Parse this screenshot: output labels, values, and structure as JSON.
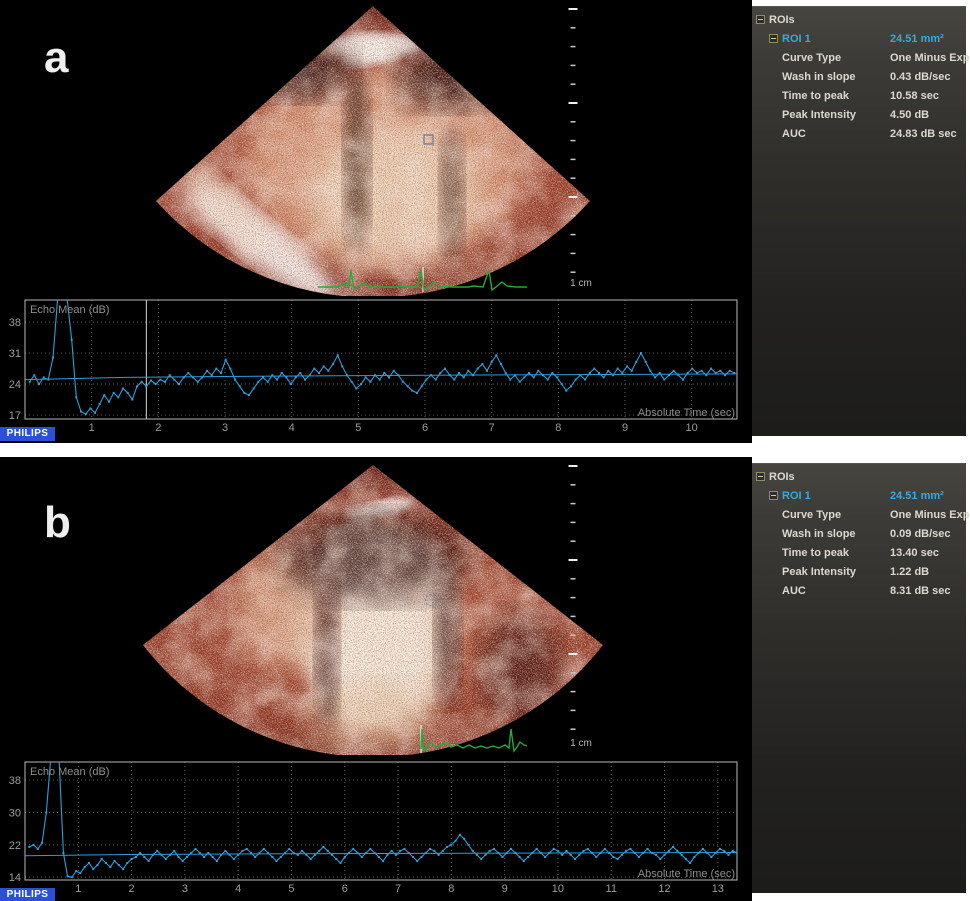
{
  "app": {
    "brand": "PHILIPS"
  },
  "panels": [
    {
      "label": "a",
      "scale_label": "1 cm",
      "roi_panel": {
        "root_label": "ROIs",
        "roi_name": "ROI 1",
        "roi_area": "24.51 mm²",
        "rows": [
          {
            "label": "Curve Type",
            "value": "One Minus Exp"
          },
          {
            "label": "Wash in slope",
            "value": "0.43 dB/sec"
          },
          {
            "label": "Time to peak",
            "value": "10.58 sec"
          },
          {
            "label": "Peak Intensity",
            "value": "4.50 dB"
          },
          {
            "label": "AUC",
            "value": "24.83 dB sec"
          }
        ]
      }
    },
    {
      "label": "b",
      "scale_label": "1 cm",
      "roi_panel": {
        "root_label": "ROIs",
        "roi_name": "ROI 1",
        "roi_area": "24.51 mm²",
        "rows": [
          {
            "label": "Curve Type",
            "value": "One Minus Exp"
          },
          {
            "label": "Wash in slope",
            "value": "0.09 dB/sec"
          },
          {
            "label": "Time to peak",
            "value": "13.40 sec"
          },
          {
            "label": "Peak Intensity",
            "value": "1.22 dB"
          },
          {
            "label": "AUC",
            "value": "8.31 dB sec"
          }
        ]
      }
    }
  ],
  "colors": {
    "accent_cyan": "#35aadf",
    "plot_blue": "#2aa0dc",
    "ecg_green": "#27a93c",
    "philips_blue": "#2b50d6",
    "sidebar_top": "#46453f",
    "sidebar_bottom": "#1c1c1a"
  },
  "chart_data": [
    {
      "type": "line",
      "title": "Echo Mean (dB)",
      "ylabel": "Echo Mean (dB)",
      "xlabel": "Absolute Time (sec)",
      "xlim": [
        0,
        10.68
      ],
      "ylim": [
        16.1,
        43.0
      ],
      "xticks": [
        1,
        2,
        3,
        4,
        5,
        6,
        7,
        8,
        9,
        10
      ],
      "yticks": [
        38,
        31,
        24,
        17
      ],
      "grid": "dotted",
      "legend": "none",
      "frame_marker_time": 1.82,
      "fit_series": {
        "name": "One Minus Exp fit",
        "points": [
          [
            0,
            25.0
          ],
          [
            1.5,
            25.5
          ],
          [
            3,
            25.7
          ],
          [
            6,
            26.0
          ],
          [
            10.68,
            26.3
          ]
        ]
      },
      "series": [
        {
          "name": "Echo Mean",
          "t0": 0.07,
          "dt": 0.07,
          "values": [
            24.5,
            26.0,
            24.0,
            25.5,
            25.0,
            30.0,
            43.5,
            43.5,
            43.5,
            34.0,
            21.0,
            17.8,
            17.2,
            18.5,
            17.5,
            19.5,
            21.5,
            20.0,
            22.0,
            21.0,
            23.0,
            22.0,
            20.5,
            23.5,
            24.5,
            23.5,
            24.8,
            24.0,
            25.0,
            24.5,
            26.0,
            25.0,
            24.0,
            25.5,
            26.5,
            25.5,
            24.5,
            25.5,
            27.0,
            26.0,
            27.5,
            26.5,
            29.5,
            27.5,
            25.0,
            23.5,
            22.0,
            21.5,
            23.0,
            24.5,
            25.5,
            24.5,
            26.0,
            25.0,
            26.5,
            25.5,
            24.0,
            25.5,
            26.5,
            25.0,
            26.0,
            27.5,
            26.5,
            28.0,
            27.0,
            28.5,
            30.5,
            28.0,
            26.0,
            24.5,
            23.0,
            24.0,
            25.5,
            24.5,
            26.0,
            25.0,
            26.5,
            25.5,
            27.0,
            26.0,
            24.5,
            23.5,
            22.5,
            22.0,
            23.5,
            25.0,
            26.0,
            25.0,
            26.5,
            27.5,
            26.0,
            25.0,
            26.5,
            25.5,
            27.0,
            26.0,
            27.5,
            28.5,
            27.0,
            29.0,
            30.5,
            28.5,
            26.5,
            25.0,
            26.0,
            24.5,
            25.5,
            26.5,
            25.5,
            27.0,
            26.0,
            25.0,
            26.5,
            25.5,
            24.0,
            22.5,
            23.5,
            25.0,
            26.0,
            25.0,
            26.5,
            27.5,
            26.5,
            25.5,
            27.0,
            26.0,
            27.5,
            26.5,
            28.0,
            27.0,
            29.0,
            31.0,
            29.0,
            27.0,
            25.5,
            26.5,
            25.0,
            26.0,
            27.0,
            26.0,
            25.0,
            26.5,
            27.5,
            26.5,
            27.0,
            26.0,
            27.5,
            26.5,
            27.0,
            26.0,
            27.0,
            26.5
          ]
        }
      ]
    },
    {
      "type": "line",
      "title": "Echo Mean (dB)",
      "ylabel": "Echo Mean (dB)",
      "xlabel": "Absolute Time (sec)",
      "xlim": [
        0,
        13.36
      ],
      "ylim": [
        13.3,
        42.5
      ],
      "xticks": [
        1,
        2,
        3,
        4,
        5,
        6,
        7,
        8,
        9,
        10,
        11,
        12,
        13
      ],
      "yticks": [
        38,
        30,
        22,
        14
      ],
      "grid": "dotted",
      "legend": "none",
      "frame_marker_time": null,
      "fit_series": {
        "name": "One Minus Exp fit",
        "points": [
          [
            0,
            19.3
          ],
          [
            2,
            19.6
          ],
          [
            5,
            19.8
          ],
          [
            13.36,
            20.1
          ]
        ]
      },
      "series": [
        {
          "name": "Echo Mean",
          "t0": 0.08,
          "dt": 0.08,
          "values": [
            21.5,
            22.0,
            21.0,
            22.5,
            30.0,
            43.0,
            43.0,
            43.0,
            20.0,
            14.2,
            14.0,
            15.5,
            15.0,
            16.5,
            17.5,
            16.0,
            17.0,
            18.5,
            17.5,
            16.5,
            18.0,
            17.0,
            16.0,
            17.5,
            18.5,
            19.0,
            20.0,
            19.0,
            18.0,
            19.5,
            20.5,
            19.5,
            18.5,
            19.5,
            20.5,
            19.0,
            18.0,
            19.0,
            20.0,
            21.0,
            20.0,
            19.0,
            20.0,
            19.0,
            18.0,
            19.5,
            20.5,
            19.5,
            18.5,
            19.5,
            20.5,
            21.0,
            20.0,
            19.0,
            20.0,
            21.0,
            20.0,
            19.0,
            18.0,
            19.0,
            20.0,
            21.0,
            20.0,
            19.5,
            20.5,
            19.5,
            18.5,
            19.5,
            20.5,
            21.5,
            20.5,
            19.5,
            18.5,
            17.5,
            19.0,
            20.0,
            21.0,
            20.0,
            19.0,
            20.0,
            21.0,
            20.0,
            19.0,
            18.0,
            19.5,
            20.5,
            19.5,
            20.5,
            21.0,
            20.0,
            19.0,
            18.0,
            19.0,
            20.0,
            21.0,
            20.5,
            19.5,
            20.5,
            21.5,
            22.0,
            23.0,
            24.5,
            23.5,
            22.0,
            20.5,
            19.5,
            18.5,
            19.5,
            20.5,
            21.0,
            20.0,
            19.0,
            20.0,
            21.0,
            20.0,
            19.0,
            18.0,
            19.0,
            20.0,
            21.0,
            20.0,
            19.0,
            20.0,
            21.0,
            20.5,
            19.5,
            20.5,
            19.5,
            18.5,
            19.5,
            20.5,
            21.0,
            20.0,
            19.0,
            20.0,
            21.0,
            20.0,
            19.0,
            18.5,
            19.5,
            20.5,
            21.0,
            20.0,
            19.0,
            20.0,
            21.0,
            20.0,
            19.5,
            18.5,
            19.5,
            20.5,
            21.5,
            20.5,
            19.5,
            18.5,
            17.5,
            19.0,
            20.0,
            21.0,
            20.0,
            19.0,
            20.0,
            21.0,
            20.5,
            19.5,
            20.5,
            20.0
          ]
        }
      ]
    }
  ]
}
